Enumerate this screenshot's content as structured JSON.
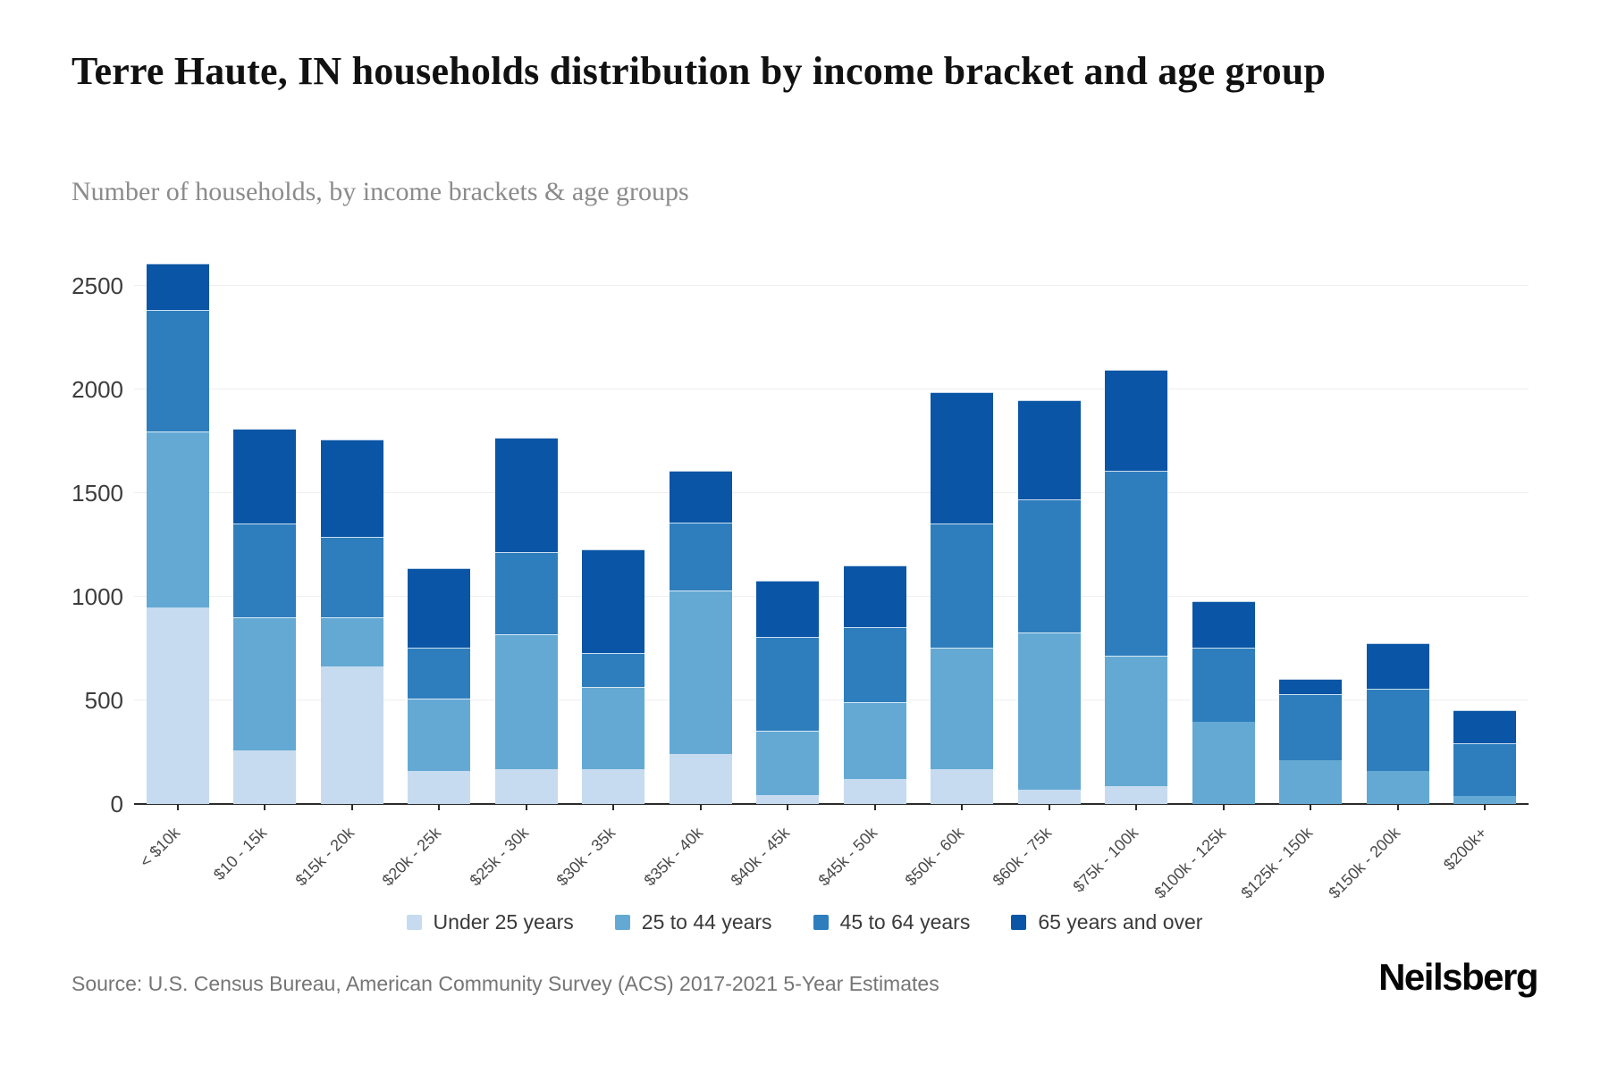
{
  "header": {
    "title": "Terre Haute, IN households distribution by income bracket and age group",
    "subtitle": "Number of households, by income brackets & age groups"
  },
  "chart_data": {
    "type": "bar",
    "stacked": true,
    "title": "Terre Haute, IN households distribution by income bracket and age group",
    "subtitle": "Number of households, by income brackets & age groups",
    "xlabel": "",
    "ylabel": "",
    "categories": [
      "< $10k",
      "$10 - 15k",
      "$15k - 20k",
      "$20k - 25k",
      "$25k - 30k",
      "$30k - 35k",
      "$35k - 40k",
      "$40k - 45k",
      "$45k - 50k",
      "$50k - 60k",
      "$60k - 75k",
      "$75k - 100k",
      "$100k - 125k",
      "$125k - 150k",
      "$150k - 200k",
      "$200k+"
    ],
    "series": [
      {
        "name": "Under 25 years",
        "color": "#c6dbef",
        "values": [
          950,
          260,
          665,
          160,
          170,
          170,
          240,
          45,
          120,
          170,
          70,
          85,
          0,
          0,
          0,
          0
        ]
      },
      {
        "name": "25 to 44 years",
        "color": "#64a9d4",
        "values": [
          850,
          640,
          235,
          350,
          650,
          395,
          790,
          310,
          370,
          585,
          760,
          630,
          395,
          210,
          160,
          40
        ]
      },
      {
        "name": "45 to 64 years",
        "color": "#2e7ebd",
        "values": [
          585,
          455,
          390,
          245,
          395,
          165,
          330,
          450,
          365,
          600,
          640,
          895,
          360,
          320,
          395,
          255
        ]
      },
      {
        "name": "65 years and over",
        "color": "#0a55a5",
        "values": [
          225,
          455,
          470,
          385,
          555,
          500,
          250,
          275,
          295,
          635,
          480,
          485,
          225,
          75,
          220,
          160
        ]
      }
    ],
    "totals": [
      2610,
      1810,
      1760,
      1140,
      1770,
      1230,
      1610,
      1080,
      1150,
      1990,
      1950,
      2095,
      980,
      605,
      775,
      455
    ],
    "yticks": [
      0,
      500,
      1000,
      1500,
      2000,
      2500
    ],
    "ylim": [
      0,
      2669
    ],
    "grid": true,
    "legend_position": "bottom"
  },
  "footer": {
    "source": "Source: U.S. Census Bureau, American Community Survey (ACS) 2017-2021 5-Year Estimates",
    "logo": "Neilsberg"
  }
}
